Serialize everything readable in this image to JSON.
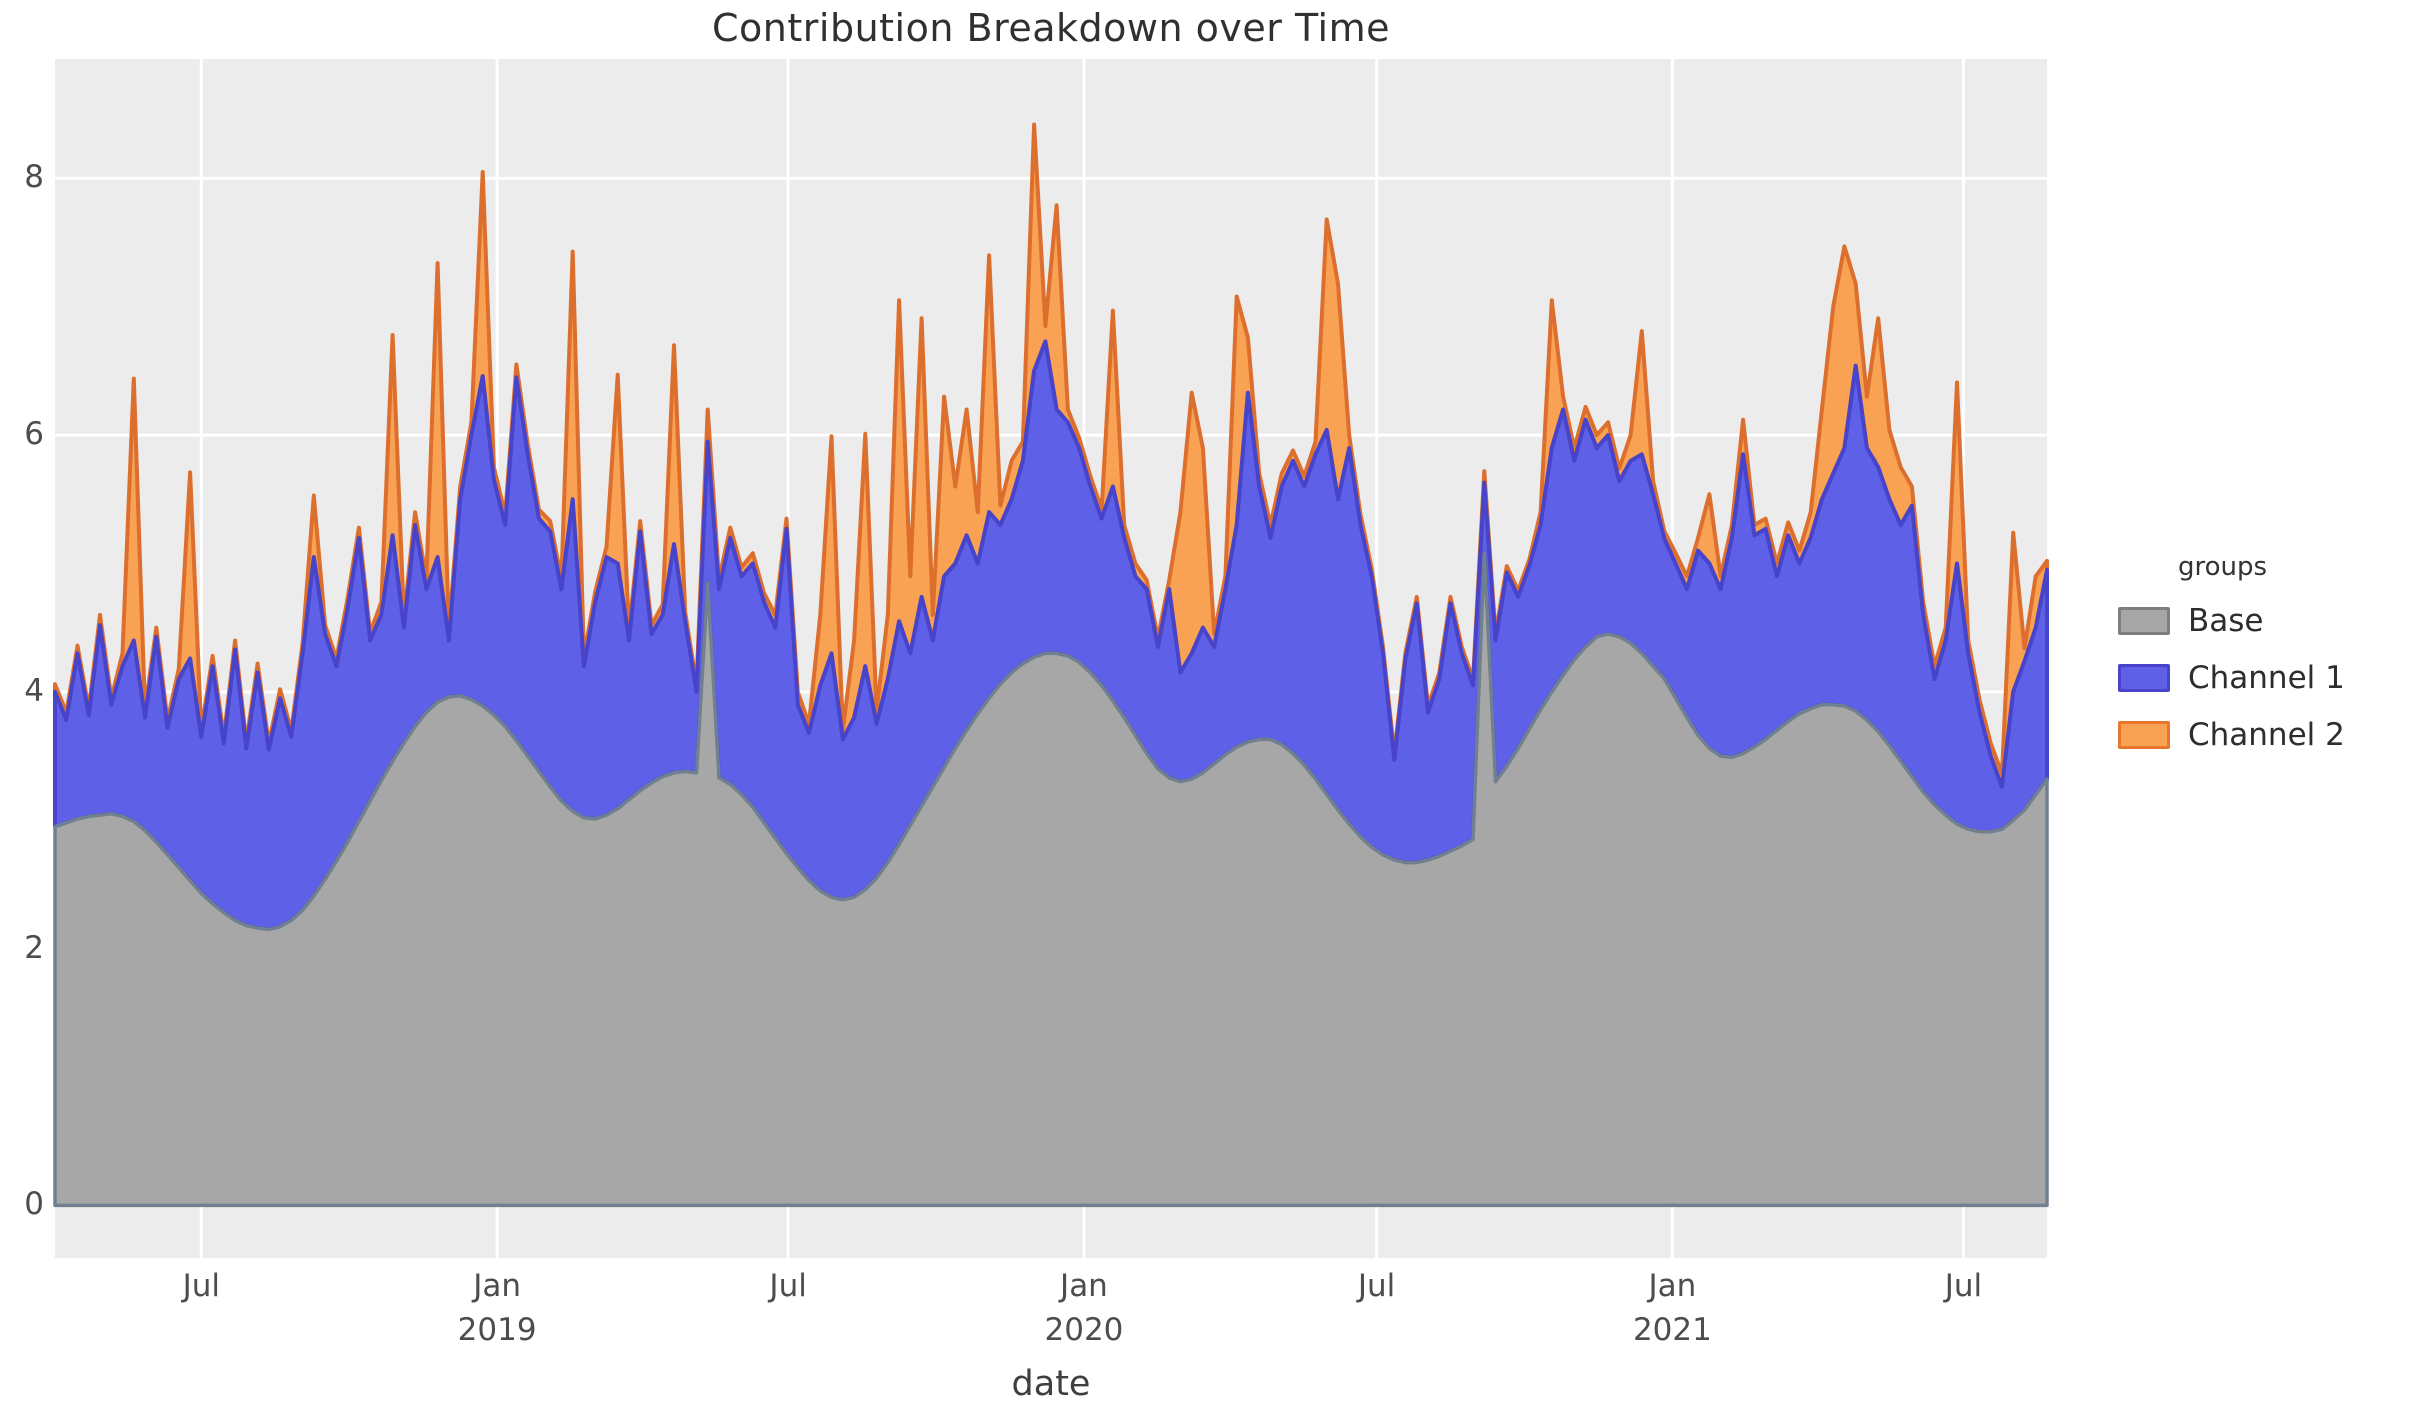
{
  "title": "Contribution Breakdown over Time",
  "axes": {
    "x_label": "date",
    "y_tick_labels": [
      "0",
      "2",
      "4",
      "6",
      "8"
    ]
  },
  "legend": {
    "title": "groups",
    "items": [
      {
        "label": "Base",
        "fill": "#A7A7A7",
        "border": "#7F7F7F"
      },
      {
        "label": "Channel 1",
        "fill": "#5E61E8",
        "border": "#4744C9"
      },
      {
        "label": "Channel 2",
        "fill": "#F9A254",
        "border": "#E8772D"
      }
    ]
  },
  "style": {
    "panel_bg": "#ECECEC",
    "grid_color": "#FFFFFF",
    "tick_text_color": "#4D4D4D",
    "title_color": "#303030",
    "base_fill": "#A7A7A7",
    "base_line": "#708090",
    "channel1_fill": "#5E61E8",
    "channel1_line": "#4744C9",
    "channel2_fill": "#F9A254",
    "channel2_line": "#DD6F2E"
  },
  "chart_data": {
    "type": "area",
    "stacked": true,
    "title": "Contribution Breakdown over Time",
    "xlabel": "date",
    "ylabel": "",
    "legend_title": "groups",
    "legend_position": "right",
    "grid": "major_only_white_on_gray",
    "x_start_date": "2018-04-01",
    "x_step_days": 7,
    "n_points": 178,
    "ylim": [
      -0.41,
      8.93
    ],
    "yticks": [
      0,
      2,
      4,
      6,
      8
    ],
    "xticks": [
      {
        "label": "Jul",
        "year": "",
        "day_offset": 91
      },
      {
        "label": "Jan",
        "year": "2019",
        "day_offset": 275
      },
      {
        "label": "Jul",
        "year": "",
        "day_offset": 456
      },
      {
        "label": "Jan",
        "year": "2020",
        "day_offset": 640
      },
      {
        "label": "Jul",
        "year": "",
        "day_offset": 822
      },
      {
        "label": "Jan",
        "year": "2021",
        "day_offset": 1006
      },
      {
        "label": "Jul",
        "year": "",
        "day_offset": 1187
      }
    ],
    "series": [
      {
        "name": "Base",
        "values": [
          2.95,
          2.98,
          3.01,
          3.03,
          3.04,
          3.05,
          3.03,
          2.99,
          2.92,
          2.83,
          2.73,
          2.63,
          2.53,
          2.43,
          2.35,
          2.28,
          2.22,
          2.18,
          2.16,
          2.15,
          2.17,
          2.22,
          2.3,
          2.41,
          2.54,
          2.68,
          2.83,
          2.99,
          3.15,
          3.31,
          3.46,
          3.6,
          3.73,
          3.84,
          3.92,
          3.96,
          3.97,
          3.94,
          3.89,
          3.82,
          3.73,
          3.62,
          3.5,
          3.38,
          3.26,
          3.15,
          3.07,
          3.02,
          3.01,
          3.04,
          3.09,
          3.16,
          3.23,
          3.29,
          3.34,
          3.37,
          3.38,
          3.37,
          4.85,
          3.33,
          3.28,
          3.2,
          3.1,
          2.98,
          2.86,
          2.74,
          2.63,
          2.53,
          2.45,
          2.4,
          2.38,
          2.4,
          2.46,
          2.55,
          2.67,
          2.81,
          2.96,
          3.11,
          3.26,
          3.41,
          3.56,
          3.7,
          3.83,
          3.95,
          4.06,
          4.15,
          4.22,
          4.27,
          4.3,
          4.3,
          4.28,
          4.23,
          4.15,
          4.05,
          3.93,
          3.8,
          3.66,
          3.52,
          3.4,
          3.33,
          3.3,
          3.32,
          3.37,
          3.44,
          3.51,
          3.57,
          3.61,
          3.63,
          3.63,
          3.59,
          3.52,
          3.43,
          3.32,
          3.2,
          3.08,
          2.97,
          2.87,
          2.79,
          2.73,
          2.69,
          2.67,
          2.67,
          2.69,
          2.72,
          2.76,
          2.8,
          2.85,
          5.08,
          3.3,
          3.42,
          3.56,
          3.71,
          3.86,
          4.0,
          4.13,
          4.25,
          4.35,
          4.43,
          4.45,
          4.43,
          4.38,
          4.3,
          4.2,
          4.1,
          3.95,
          3.8,
          3.66,
          3.56,
          3.5,
          3.49,
          3.52,
          3.57,
          3.63,
          3.7,
          3.77,
          3.83,
          3.87,
          3.9,
          3.9,
          3.89,
          3.85,
          3.78,
          3.69,
          3.58,
          3.46,
          3.34,
          3.22,
          3.12,
          3.04,
          2.97,
          2.93,
          2.91,
          2.91,
          2.93,
          3.0,
          3.08,
          3.2,
          3.32
        ]
      },
      {
        "name": "Channel 1",
        "values": [
          1.05,
          0.8,
          1.29,
          0.79,
          1.48,
          0.85,
          1.17,
          1.41,
          0.88,
          1.6,
          0.99,
          1.47,
          1.73,
          1.22,
          1.85,
          1.32,
          2.11,
          1.38,
          1.99,
          1.4,
          1.78,
          1.43,
          2.0,
          2.64,
          1.91,
          1.52,
          1.82,
          2.21,
          1.25,
          1.29,
          1.76,
          0.9,
          1.57,
          0.96,
          1.13,
          0.44,
          1.53,
          2.06,
          2.57,
          1.83,
          1.57,
          2.83,
          2.35,
          1.97,
          1.99,
          1.65,
          2.43,
          1.18,
          1.69,
          2.01,
          1.91,
          1.24,
          2.02,
          1.16,
          1.26,
          1.78,
          1.17,
          0.63,
          1.1,
          1.47,
          1.92,
          1.7,
          1.9,
          1.72,
          1.64,
          2.53,
          1.27,
          1.15,
          1.6,
          1.9,
          1.25,
          1.4,
          1.74,
          1.2,
          1.43,
          1.74,
          1.34,
          1.63,
          1.14,
          1.49,
          1.44,
          1.52,
          1.17,
          1.45,
          1.24,
          1.35,
          1.58,
          2.23,
          2.43,
          1.9,
          1.82,
          1.67,
          1.45,
          1.3,
          1.67,
          1.4,
          1.24,
          1.28,
          0.95,
          1.47,
          0.85,
          0.98,
          1.13,
          0.91,
          1.29,
          1.73,
          2.72,
          1.97,
          1.57,
          2.01,
          2.28,
          2.17,
          2.53,
          2.84,
          2.42,
          2.93,
          2.43,
          2.11,
          1.57,
          0.78,
          1.59,
          2.02,
          1.15,
          1.38,
          1.93,
          1.5,
          1.2,
          0.55,
          1.1,
          1.51,
          1.18,
          1.27,
          1.44,
          1.9,
          2.07,
          1.55,
          1.77,
          1.47,
          1.55,
          1.21,
          1.42,
          1.55,
          1.34,
          1.09,
          1.05,
          1.0,
          1.44,
          1.44,
          1.3,
          1.71,
          2.33,
          1.65,
          1.64,
          1.2,
          1.45,
          1.17,
          1.33,
          1.6,
          1.8,
          2.01,
          2.69,
          2.12,
          2.06,
          1.92,
          1.84,
          2.11,
          1.38,
          0.98,
          1.36,
          2.03,
          1.37,
          0.93,
          0.59,
          0.33,
          1.0,
          1.16,
          1.3,
          1.63
        ]
      },
      {
        "name": "Channel 2",
        "values": [
          0.06,
          0.06,
          0.06,
          0.05,
          0.08,
          0.05,
          0.1,
          2.04,
          0.06,
          0.07,
          0.06,
          0.08,
          1.45,
          0.05,
          0.08,
          0.05,
          0.07,
          0.05,
          0.07,
          0.05,
          0.07,
          0.05,
          0.08,
          0.48,
          0.07,
          0.06,
          0.08,
          0.08,
          0.06,
          0.1,
          1.56,
          0.08,
          0.1,
          0.08,
          2.29,
          0.08,
          0.1,
          0.1,
          1.59,
          0.1,
          0.08,
          0.1,
          0.08,
          0.07,
          0.08,
          0.08,
          1.93,
          0.07,
          0.08,
          0.08,
          1.47,
          0.07,
          0.08,
          0.07,
          0.08,
          1.55,
          0.07,
          0.06,
          0.25,
          0.08,
          0.08,
          0.07,
          0.08,
          0.07,
          0.1,
          0.08,
          0.1,
          0.07,
          0.55,
          1.69,
          0.07,
          0.6,
          1.81,
          0.1,
          0.5,
          2.5,
          0.6,
          2.17,
          0.2,
          1.4,
          0.6,
          0.98,
          0.4,
          2.0,
          0.15,
          0.3,
          0.15,
          1.92,
          0.12,
          1.59,
          0.1,
          0.08,
          0.08,
          0.07,
          1.37,
          0.1,
          0.1,
          0.07,
          0.07,
          0.07,
          1.25,
          2.03,
          1.4,
          0.1,
          0.1,
          1.78,
          0.43,
          0.1,
          0.1,
          0.1,
          0.08,
          0.08,
          0.1,
          1.64,
          1.68,
          0.1,
          0.08,
          0.06,
          0.05,
          0.05,
          0.05,
          0.05,
          0.05,
          0.05,
          0.05,
          0.05,
          0.05,
          0.09,
          0.05,
          0.05,
          0.05,
          0.05,
          0.1,
          1.15,
          0.1,
          0.1,
          0.1,
          0.1,
          0.1,
          0.1,
          0.2,
          0.96,
          0.1,
          0.06,
          0.08,
          0.1,
          0.1,
          0.54,
          0.1,
          0.1,
          0.27,
          0.08,
          0.08,
          0.1,
          0.1,
          0.1,
          0.2,
          0.7,
          1.3,
          1.57,
          0.64,
          0.4,
          1.16,
          0.54,
          0.45,
          0.15,
          0.1,
          0.1,
          0.1,
          1.41,
          0.1,
          0.1,
          0.1,
          0.1,
          1.24,
          0.1,
          0.4,
          0.07
        ]
      }
    ]
  }
}
